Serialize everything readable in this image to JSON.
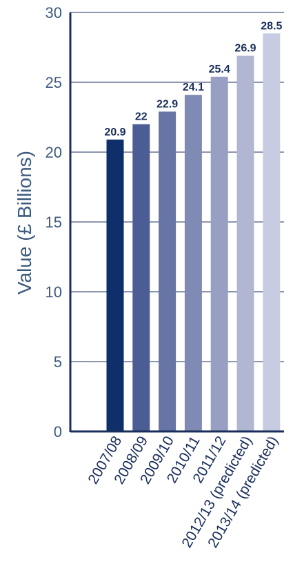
{
  "chart_data": {
    "type": "bar",
    "title": "",
    "xlabel": "",
    "ylabel": "Value (£ Billions)",
    "ylim": [
      0,
      30
    ],
    "yticks": [
      0,
      5,
      10,
      15,
      20,
      25,
      30
    ],
    "grid": true,
    "categories": [
      "2007/08",
      "2008/09",
      "2009/10",
      "2010/11",
      "2011/12",
      "2012/13 (predicted)",
      "2013/14 (predicted)"
    ],
    "values": [
      20.9,
      22,
      22.9,
      24.1,
      25.4,
      26.9,
      28.5
    ],
    "data_labels": [
      "20.9",
      "22",
      "22.9",
      "24.1",
      "25.4",
      "26.9",
      "28.5"
    ],
    "colors": [
      "#0f2f6b",
      "#4c5c94",
      "#6674a6",
      "#7f8ab5",
      "#979fc3",
      "#b1b7d3",
      "#c8cce2"
    ],
    "axis_color": "#1a2e5c"
  }
}
